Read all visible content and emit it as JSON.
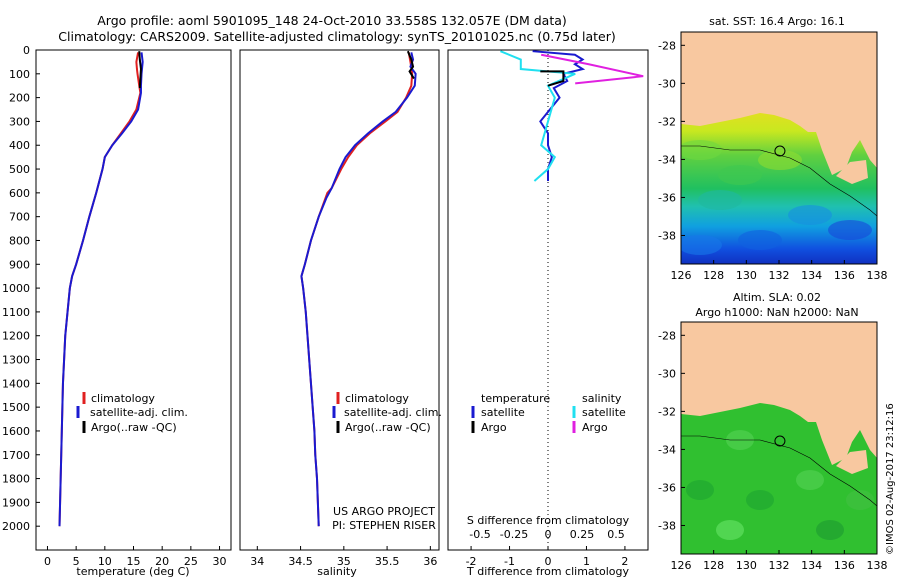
{
  "header": {
    "line1": "Argo profile: aoml 5901095_148 24-Oct-2010 33.558S 132.057E (DM data)",
    "line2": "Climatology: CARS2009. Satellite-adjusted climatology: synTS_20101025.nc (0.75d later)"
  },
  "colors": {
    "climatology": "#e02020",
    "satellite": "#1a1ad0",
    "argo": "#000000",
    "sat_salinity": "#20e0f0",
    "argo_salinity": "#e020e0",
    "land": "#f8c8a0"
  },
  "chart_data": [
    {
      "type": "line",
      "id": "temperature",
      "xlabel": "temperature (deg C)",
      "ylabel": "",
      "xlim": [
        -2,
        32
      ],
      "ylim": [
        2100,
        0
      ],
      "xticks": [
        0,
        5,
        10,
        15,
        20,
        25,
        30
      ],
      "yticks": [
        0,
        100,
        200,
        300,
        400,
        500,
        600,
        700,
        800,
        900,
        1000,
        1100,
        1200,
        1300,
        1400,
        1500,
        1600,
        1700,
        1800,
        1900,
        2000
      ],
      "legend": [
        "climatology",
        "satellite-adj. clim.",
        "Argo(..raw -QC)"
      ],
      "series": [
        {
          "name": "climatology",
          "color": "#e02020",
          "points": [
            [
              15.8,
              10
            ],
            [
              15.5,
              50
            ],
            [
              15.6,
              80
            ],
            [
              15.7,
              100
            ],
            [
              16.0,
              150
            ],
            [
              16.2,
              180
            ],
            [
              15.5,
              250
            ],
            [
              14.3,
              300
            ],
            [
              12.8,
              350
            ],
            [
              11.3,
              400
            ],
            [
              10.0,
              450
            ],
            [
              9.6,
              500
            ],
            [
              8.5,
              600
            ],
            [
              7.3,
              700
            ],
            [
              6.2,
              800
            ],
            [
              5.0,
              900
            ],
            [
              4.3,
              950
            ],
            [
              3.9,
              1000
            ],
            [
              3.5,
              1100
            ],
            [
              3.1,
              1200
            ],
            [
              2.9,
              1300
            ],
            [
              2.7,
              1400
            ],
            [
              2.6,
              1500
            ],
            [
              2.5,
              1600
            ],
            [
              2.4,
              1700
            ],
            [
              2.3,
              1800
            ],
            [
              2.2,
              1900
            ],
            [
              2.1,
              2000
            ]
          ]
        },
        {
          "name": "satellite-adj. clim.",
          "color": "#1a1ad0",
          "points": [
            [
              16.4,
              10
            ],
            [
              16.6,
              50
            ],
            [
              16.4,
              100
            ],
            [
              16.3,
              150
            ],
            [
              16.3,
              180
            ],
            [
              15.8,
              250
            ],
            [
              14.6,
              300
            ],
            [
              13.0,
              350
            ],
            [
              11.3,
              400
            ],
            [
              10.0,
              450
            ],
            [
              9.6,
              500
            ],
            [
              8.5,
              600
            ],
            [
              7.3,
              700
            ],
            [
              6.2,
              800
            ],
            [
              5.0,
              900
            ],
            [
              4.3,
              950
            ],
            [
              3.9,
              1000
            ],
            [
              3.5,
              1100
            ],
            [
              3.1,
              1200
            ],
            [
              2.9,
              1300
            ],
            [
              2.7,
              1400
            ],
            [
              2.6,
              1500
            ],
            [
              2.5,
              1600
            ],
            [
              2.4,
              1700
            ],
            [
              2.3,
              1800
            ],
            [
              2.2,
              1900
            ],
            [
              2.1,
              2000
            ]
          ]
        },
        {
          "name": "Argo(..raw -QC)",
          "color": "#000000",
          "points": [
            [
              16.0,
              5
            ],
            [
              16.1,
              40
            ],
            [
              16.3,
              80
            ],
            [
              16.2,
              120
            ],
            [
              16.1,
              160
            ]
          ]
        }
      ]
    },
    {
      "type": "line",
      "id": "salinity",
      "xlabel": "salinity",
      "ylabel": "",
      "xlim": [
        33.8,
        36.1
      ],
      "ylim": [
        2100,
        0
      ],
      "xticks": [
        34,
        34.5,
        35,
        35.5,
        36
      ],
      "xtick_labels": [
        "34",
        "34.5",
        "35",
        "35.5",
        "36"
      ],
      "legend": [
        "climatology",
        "satellite-adj. clim.",
        "Argo(..raw -QC)"
      ],
      "annotation": [
        "US ARGO PROJECT",
        "PI: STEPHEN RISER"
      ],
      "series": [
        {
          "name": "climatology",
          "color": "#e02020",
          "points": [
            [
              35.75,
              10
            ],
            [
              35.77,
              50
            ],
            [
              35.79,
              100
            ],
            [
              35.78,
              150
            ],
            [
              35.72,
              200
            ],
            [
              35.62,
              260
            ],
            [
              35.48,
              300
            ],
            [
              35.3,
              350
            ],
            [
              35.15,
              400
            ],
            [
              35.05,
              450
            ],
            [
              34.97,
              500
            ],
            [
              34.86,
              580
            ],
            [
              34.81,
              600
            ],
            [
              34.71,
              700
            ],
            [
              34.62,
              800
            ],
            [
              34.55,
              900
            ],
            [
              34.51,
              950
            ],
            [
              34.53,
              1000
            ],
            [
              34.56,
              1100
            ],
            [
              34.58,
              1200
            ],
            [
              34.6,
              1300
            ],
            [
              34.62,
              1400
            ],
            [
              34.64,
              1500
            ],
            [
              34.66,
              1600
            ],
            [
              34.67,
              1700
            ],
            [
              34.69,
              1800
            ],
            [
              34.7,
              1900
            ],
            [
              34.71,
              2000
            ]
          ]
        },
        {
          "name": "satellite-adj. clim.",
          "color": "#1a1ad0",
          "points": [
            [
              35.78,
              10
            ],
            [
              35.8,
              40
            ],
            [
              35.77,
              70
            ],
            [
              35.83,
              100
            ],
            [
              35.82,
              150
            ],
            [
              35.73,
              200
            ],
            [
              35.6,
              260
            ],
            [
              35.45,
              300
            ],
            [
              35.28,
              350
            ],
            [
              35.13,
              400
            ],
            [
              35.02,
              450
            ],
            [
              34.95,
              500
            ],
            [
              34.86,
              580
            ],
            [
              34.8,
              620
            ],
            [
              34.71,
              700
            ],
            [
              34.62,
              800
            ],
            [
              34.55,
              900
            ],
            [
              34.51,
              950
            ],
            [
              34.53,
              1000
            ],
            [
              34.56,
              1100
            ],
            [
              34.58,
              1200
            ],
            [
              34.6,
              1300
            ],
            [
              34.62,
              1400
            ],
            [
              34.64,
              1500
            ],
            [
              34.66,
              1600
            ],
            [
              34.67,
              1700
            ],
            [
              34.69,
              1800
            ],
            [
              34.7,
              1900
            ],
            [
              34.71,
              2000
            ]
          ]
        },
        {
          "name": "Argo(..raw -QC)",
          "color": "#000000",
          "points": [
            [
              35.74,
              5
            ],
            [
              35.78,
              40
            ],
            [
              35.8,
              70
            ],
            [
              35.76,
              90
            ],
            [
              35.81,
              120
            ]
          ]
        }
      ]
    },
    {
      "type": "line",
      "id": "difference",
      "xlabel": "T difference from climatology",
      "xlabel_top": "S difference from climatology",
      "xlim": [
        -2.6,
        2.6
      ],
      "ylim": [
        2100,
        0
      ],
      "xticks": [
        -2,
        -1,
        0,
        1,
        2
      ],
      "sticks": [
        -0.5,
        -0.25,
        0,
        0.25,
        0.5
      ],
      "legend_left_title": "temperature",
      "legend_right_title": "salinity",
      "legend_left": [
        "satellite",
        "Argo"
      ],
      "legend_right": [
        "satellite",
        "Argo"
      ],
      "series": [
        {
          "name": "satellite",
          "kind": "T",
          "color": "#1a1ad0",
          "points": [
            [
              -0.4,
              5
            ],
            [
              0.7,
              20
            ],
            [
              0.9,
              40
            ],
            [
              0.7,
              60
            ],
            [
              0.9,
              80
            ],
            [
              0.4,
              100
            ],
            [
              0.5,
              130
            ],
            [
              0.15,
              160
            ],
            [
              0.3,
              200
            ],
            [
              0.05,
              250
            ],
            [
              -0.2,
              300
            ],
            [
              0.0,
              350
            ],
            [
              0.0,
              400
            ],
            [
              0.1,
              450
            ],
            [
              0.0,
              500
            ],
            [
              0.0,
              550
            ]
          ]
        },
        {
          "name": "satellite",
          "kind": "S",
          "color": "#20e0f0",
          "points": [
            [
              -0.35,
              5
            ],
            [
              -0.2,
              40
            ],
            [
              -0.2,
              80
            ],
            [
              0.2,
              100
            ],
            [
              0.0,
              150
            ],
            [
              0.05,
              200
            ],
            [
              0.0,
              300
            ],
            [
              -0.05,
              400
            ],
            [
              0.05,
              450
            ],
            [
              0.0,
              500
            ],
            [
              -0.1,
              550
            ]
          ]
        },
        {
          "name": "Argo",
          "kind": "T",
          "color": "#000000",
          "points": [
            [
              -0.2,
              90
            ],
            [
              0.4,
              90
            ],
            [
              0.4,
              130
            ],
            [
              0.0,
              150
            ]
          ]
        },
        {
          "name": "Argo",
          "kind": "S",
          "color": "#e020e0",
          "points": [
            [
              -0.05,
              20
            ],
            [
              0.3,
              60
            ],
            [
              0.7,
              110
            ],
            [
              0.2,
              140
            ]
          ]
        }
      ]
    },
    {
      "type": "heatmap",
      "id": "sst-map",
      "title": "sat. SST: 16.4 Argo: 16.1",
      "xlim": [
        126,
        138
      ],
      "ylim": [
        -39.5,
        -27.3
      ],
      "xticks": [
        126,
        128,
        130,
        132,
        134,
        136,
        138
      ],
      "yticks": [
        -28,
        -30,
        -32,
        -34,
        -36,
        -38
      ],
      "marker": [
        132.057,
        -33.558
      ]
    },
    {
      "type": "heatmap",
      "id": "sla-map",
      "title": "Altim. SLA: 0.02",
      "title2": "Argo h1000: NaN h2000: NaN",
      "xlim": [
        126,
        138
      ],
      "ylim": [
        -39.5,
        -27.3
      ],
      "xticks": [
        126,
        128,
        130,
        132,
        134,
        136,
        138
      ],
      "yticks": [
        -28,
        -30,
        -32,
        -34,
        -36,
        -38
      ],
      "marker": [
        132.057,
        -33.558
      ]
    }
  ],
  "credit": "©IMOS 02-Aug-2017 23:12:16"
}
